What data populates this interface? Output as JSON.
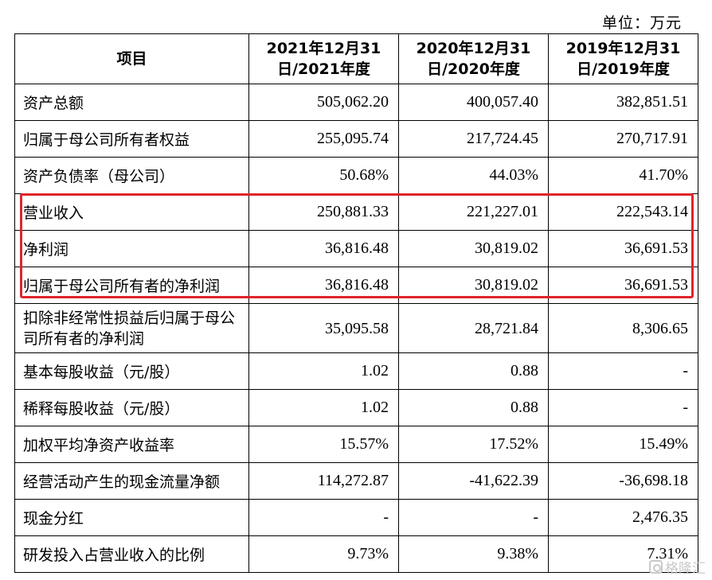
{
  "unit_label": "单位：万元",
  "header": {
    "item": "项目",
    "col2021": "2021年12月31日/2021年度",
    "col2020": "2020年12月31日/2020年度",
    "col2019": "2019年12月31日/2019年度"
  },
  "rows": [
    {
      "label": "资产总额",
      "v2021": "505,062.20",
      "v2020": "400,057.40",
      "v2019": "382,851.51"
    },
    {
      "label": "归属于母公司所有者权益",
      "v2021": "255,095.74",
      "v2020": "217,724.45",
      "v2019": "270,717.91"
    },
    {
      "label": "资产负债率（母公司）",
      "v2021": "50.68%",
      "v2020": "44.03%",
      "v2019": "41.70%"
    },
    {
      "label": "营业收入",
      "v2021": "250,881.33",
      "v2020": "221,227.01",
      "v2019": "222,543.14"
    },
    {
      "label": "净利润",
      "v2021": "36,816.48",
      "v2020": "30,819.02",
      "v2019": "36,691.53"
    },
    {
      "label": "归属于母公司所有者的净利润",
      "v2021": "36,816.48",
      "v2020": "30,819.02",
      "v2019": "36,691.53"
    },
    {
      "label": "扣除非经常性损益后归属于母公司所有者的净利润",
      "v2021": "35,095.58",
      "v2020": "28,721.84",
      "v2019": "8,306.65"
    },
    {
      "label": "基本每股收益（元/股）",
      "v2021": "1.02",
      "v2020": "0.88",
      "v2019": "-"
    },
    {
      "label": "稀释每股收益（元/股）",
      "v2021": "1.02",
      "v2020": "0.88",
      "v2019": "-"
    },
    {
      "label": "加权平均净资产收益率",
      "v2021": "15.57%",
      "v2020": "17.52%",
      "v2019": "15.49%"
    },
    {
      "label": "经营活动产生的现金流量净额",
      "v2021": "114,272.87",
      "v2020": "-41,622.39",
      "v2019": "-36,698.18"
    },
    {
      "label": "现金分红",
      "v2021": "-",
      "v2020": "-",
      "v2019": "2,476.35"
    },
    {
      "label": "研发投入占营业收入的比例",
      "v2021": "9.73%",
      "v2020": "9.38%",
      "v2019": "7.31%"
    }
  ],
  "highlight_color": "#e0242a",
  "watermark": {
    "icon": "gelonghui-logo-icon",
    "text": "格隆汇"
  }
}
